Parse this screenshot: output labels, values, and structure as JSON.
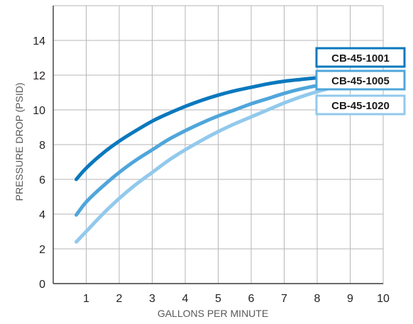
{
  "chart_data": {
    "type": "line",
    "title": "",
    "xlabel": "GALLONS PER MINUTE",
    "ylabel": "PRESSURE DROP (PSID)",
    "xlim": [
      0,
      10
    ],
    "ylim": [
      0,
      16
    ],
    "x_ticks": [
      "1",
      "2",
      "3",
      "4",
      "5",
      "6",
      "7",
      "8",
      "9",
      "10"
    ],
    "y_ticks": [
      "0",
      "2",
      "4",
      "6",
      "8",
      "10",
      "12",
      "14"
    ],
    "grid": true,
    "legend_position": "right",
    "series": [
      {
        "name": "CB-45-1001",
        "color": "#0a78be",
        "x": [
          0.7,
          1,
          1.5,
          2,
          2.5,
          3,
          3.5,
          4,
          4.5,
          5,
          5.5,
          6,
          6.5,
          7,
          7.5,
          8,
          8.5,
          9.2
        ],
        "y": [
          6.0,
          6.65,
          7.5,
          8.2,
          8.8,
          9.35,
          9.8,
          10.2,
          10.55,
          10.85,
          11.1,
          11.3,
          11.5,
          11.65,
          11.75,
          11.85,
          11.9,
          11.95
        ]
      },
      {
        "name": "CB-45-1005",
        "color": "#4fa6db",
        "x": [
          0.7,
          1,
          1.5,
          2,
          2.5,
          3,
          3.5,
          4,
          4.5,
          5,
          5.5,
          6,
          6.5,
          7,
          7.5,
          8,
          8.5,
          9.2
        ],
        "y": [
          3.95,
          4.7,
          5.6,
          6.4,
          7.1,
          7.7,
          8.3,
          8.8,
          9.25,
          9.65,
          10.0,
          10.35,
          10.65,
          10.95,
          11.2,
          11.4,
          11.55,
          11.75
        ]
      },
      {
        "name": "CB-45-1020",
        "color": "#92c9ec",
        "x": [
          0.7,
          1,
          1.5,
          2,
          2.5,
          3,
          3.5,
          4,
          4.5,
          5,
          5.5,
          6,
          6.5,
          7,
          7.5,
          8,
          8.5,
          9.2
        ],
        "y": [
          2.4,
          3.0,
          4.0,
          4.9,
          5.7,
          6.4,
          7.1,
          7.7,
          8.25,
          8.75,
          9.2,
          9.6,
          10.0,
          10.4,
          10.75,
          11.05,
          11.3,
          11.55
        ]
      }
    ]
  }
}
